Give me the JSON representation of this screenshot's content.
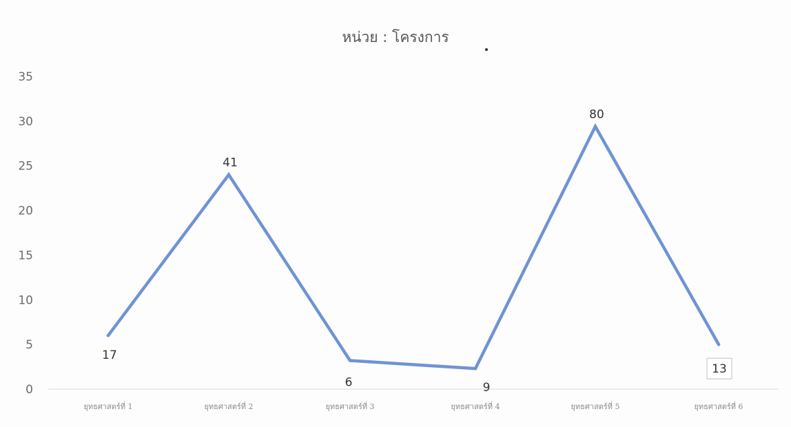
{
  "chart_data": {
    "type": "line",
    "title": "หน่วย : โครงการ",
    "categories": [
      "ยุทธศาสตร์ที่ 1",
      "ยุทธศาสตร์ที่ 2",
      "ยุทธศาสตร์ที่ 3",
      "ยุทธศาสตร์ที่ 4",
      "ยุทธศาสตร์ที่ 5",
      "ยุทธศาสตร์ที่ 6"
    ],
    "values": [
      6,
      24,
      3.2,
      2.3,
      29.4,
      5
    ],
    "data_labels": [
      "17",
      "41",
      "6",
      "9",
      "80",
      "13"
    ],
    "ylim": [
      0,
      35
    ],
    "yticks": [
      0,
      5,
      10,
      15,
      20,
      25,
      30,
      35
    ],
    "grid": false,
    "legend": "none",
    "line_color": "#6f93d4"
  }
}
